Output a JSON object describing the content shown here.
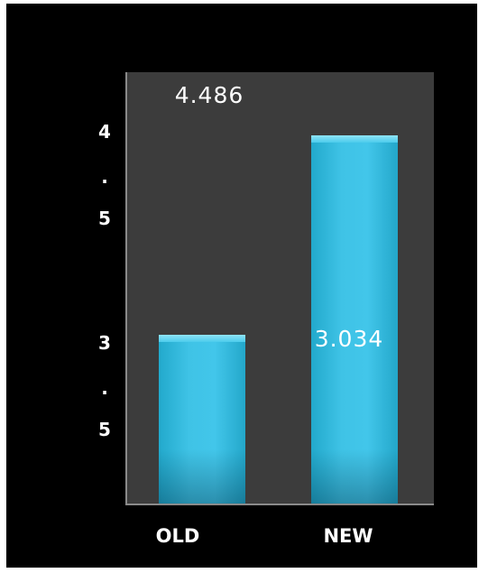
{
  "chart_data": {
    "type": "bar",
    "title": "",
    "xlabel": "",
    "ylabel": "",
    "categories": [
      "OLD",
      "NEW"
    ],
    "series": [
      {
        "values": [
          3.034,
          4.486
        ]
      }
    ],
    "data_labels": [
      "4.486",
      "3.034"
    ],
    "y_tick_labels": [
      {
        "value": 4.5,
        "chars": [
          "4",
          ".",
          "5"
        ]
      },
      {
        "value": 3.5,
        "chars": [
          "3",
          ".",
          "5"
        ]
      }
    ],
    "ylim": [
      1.8,
      4.95
    ],
    "grid": false,
    "legend": "none",
    "colors": {
      "bar": "#3fc3e6",
      "plot_background": "#3c3c3c",
      "page_background": "#000000",
      "text": "#ffffff"
    }
  }
}
